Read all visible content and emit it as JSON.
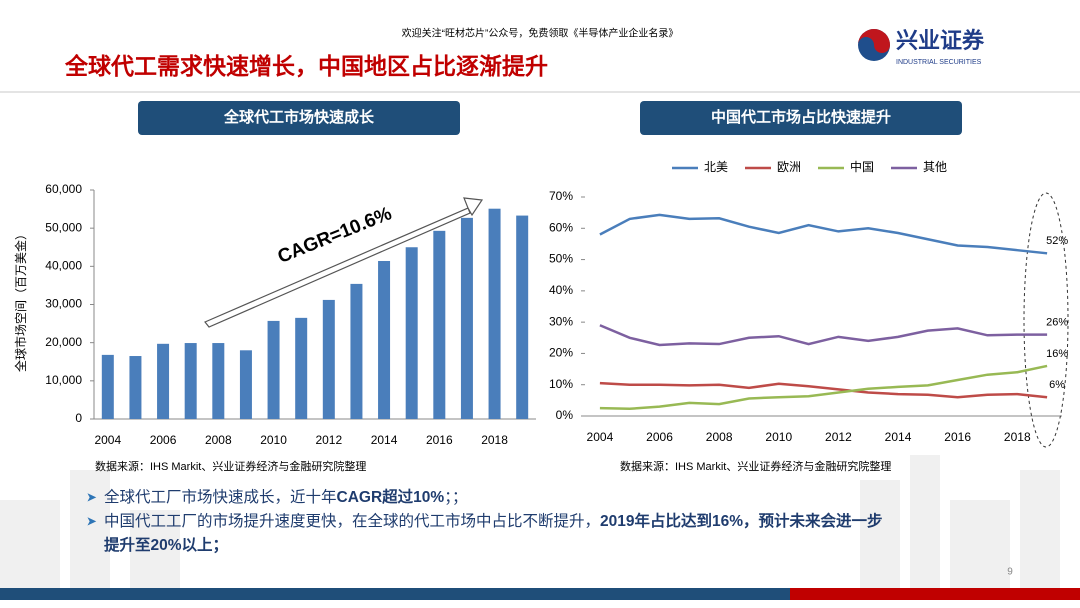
{
  "header": {
    "note": "欢迎关注“旺材芯片”公众号，免费领取《半导体产业企业名录》",
    "title": "全球代工需求快速增长，中国地区占比逐渐提升",
    "logo": "兴业证券",
    "logo_sub": "INDUSTRIAL SECURITIES"
  },
  "panels": [
    "全球代工市场快速成长",
    "中国代工市场占比快速提升"
  ],
  "chart_data": [
    {
      "type": "bar",
      "ylabel": "全球市场空间（百万美金）",
      "annotation": "CAGR=10.6%",
      "source": "数据来源：IHS Markit、兴业证券经济与金融研究院整理",
      "categories": [
        "2004",
        null,
        "2006",
        null,
        "2008",
        null,
        "2010",
        null,
        "2012",
        null,
        "2014",
        null,
        "2016",
        null,
        "2018",
        null
      ],
      "values": [
        16800,
        16500,
        19700,
        19900,
        19900,
        18000,
        25700,
        26500,
        31200,
        35400,
        41400,
        45000,
        49300,
        52700,
        55100,
        53300
      ],
      "color": "#4a7ebb",
      "ylim": [
        0,
        60000
      ],
      "yticks": [
        0,
        {
          "value": 10000,
          "label": "10,000"
        },
        {
          "value": 20000,
          "label": "20,000"
        },
        {
          "value": 30000,
          "label": "30,000"
        },
        {
          "value": 40000,
          "label": "40,000"
        },
        {
          "value": 50000,
          "label": "50,000"
        },
        {
          "value": 60000,
          "label": "60,000"
        }
      ],
      "grid": false
    },
    {
      "type": "line",
      "source": "数据来源：IHS Markit、兴业证券经济与金融研究院整理",
      "legend": "top",
      "grid": false,
      "categories": [
        "2004",
        null,
        "2006",
        null,
        "2008",
        null,
        "2010",
        null,
        "2012",
        null,
        "2014",
        null,
        "2016",
        null,
        "2018",
        null
      ],
      "ylim": [
        0,
        70
      ],
      "yticks": [
        {
          "value": 0,
          "label": "0%"
        },
        {
          "value": 10,
          "label": "10%"
        },
        {
          "value": 20,
          "label": "20%"
        },
        {
          "value": 30,
          "label": "30%"
        },
        {
          "value": 40,
          "label": "40%"
        },
        {
          "value": 50,
          "label": "50%"
        },
        {
          "value": 60,
          "label": "60%"
        },
        {
          "value": 70,
          "label": "70%"
        }
      ],
      "series": [
        {
          "name": "北美",
          "color": "#4a7ebb",
          "values": [
            58,
            63,
            64.3,
            63,
            63.2,
            60.5,
            58.5,
            61,
            59,
            60,
            58.5,
            56.5,
            54.5,
            54,
            53,
            52
          ],
          "value_labels": [
            null,
            null,
            null,
            null,
            null,
            null,
            null,
            null,
            null,
            null,
            null,
            null,
            null,
            null,
            null,
            "52%"
          ]
        },
        {
          "name": "欧洲",
          "color": "#be4b48",
          "values": [
            10.5,
            10,
            10,
            9.8,
            10,
            9,
            10.3,
            9.5,
            8.5,
            7.5,
            7,
            6.8,
            6,
            6.8,
            7,
            6
          ],
          "value_labels": [
            null,
            null,
            null,
            null,
            null,
            null,
            null,
            null,
            null,
            null,
            null,
            null,
            null,
            null,
            null,
            "6%"
          ]
        },
        {
          "name": "中国",
          "color": "#98b954",
          "values": [
            2.5,
            2.3,
            3,
            4.2,
            3.8,
            5.6,
            6,
            6.3,
            7.5,
            8.7,
            9.3,
            9.8,
            11.5,
            13.2,
            14,
            16
          ],
          "value_labels": [
            null,
            null,
            null,
            null,
            null,
            null,
            null,
            null,
            null,
            null,
            null,
            null,
            null,
            null,
            null,
            "16%"
          ]
        },
        {
          "name": "其他",
          "color": "#7d60a0",
          "values": [
            29,
            25,
            22.7,
            23.2,
            23,
            25,
            25.5,
            23,
            25.3,
            24,
            25.3,
            27.3,
            28,
            25.8,
            26,
            26
          ],
          "value_labels": [
            null,
            null,
            null,
            null,
            null,
            null,
            null,
            null,
            null,
            null,
            null,
            null,
            null,
            null,
            null,
            "26%"
          ]
        }
      ]
    }
  ],
  "bullets": [
    [
      {
        "text": "全球代工厂市场快速成长，近十年",
        "bold": false
      },
      {
        "text": "CAGR超过10%",
        "bold": true
      },
      {
        "text": "；；",
        "bold": false
      }
    ],
    [
      {
        "text": "中国代工工厂的市场提升速度更快，在全球的代工市场中占比不断提升，",
        "bold": false
      },
      {
        "text": "2019年占比达到16%，预计未来会进一步",
        "bold": true
      }
    ],
    [
      {
        "text": "提升至20%以上；",
        "bold": true
      }
    ]
  ],
  "page_number": "9"
}
